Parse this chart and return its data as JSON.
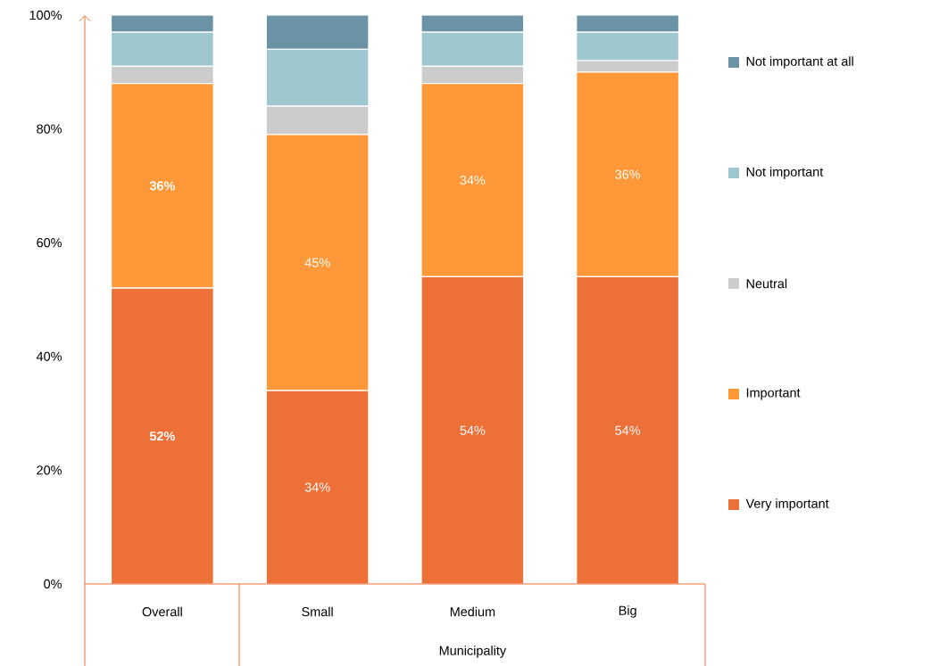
{
  "chart_data": {
    "type": "bar",
    "stacked": true,
    "xlabel": "Municipality",
    "categories": [
      "Overall",
      "Small",
      "Medium",
      "Big"
    ],
    "series": [
      {
        "name": "Very important",
        "color": "#ed7038",
        "values": [
          52,
          34,
          54,
          54
        ],
        "value_labels": [
          "**52%**",
          "34%",
          "54%",
          "54%"
        ]
      },
      {
        "name": "Important",
        "color": "#ff9838",
        "values": [
          36,
          45,
          34,
          36
        ],
        "value_labels": [
          "**36%**",
          "45%",
          "34%",
          "36%"
        ]
      },
      {
        "name": "Neutral",
        "color": "#cccccc",
        "values": [
          3,
          5,
          3,
          2
        ]
      },
      {
        "name": "Not important",
        "color": "#9fc7d0",
        "values": [
          6,
          10,
          6,
          5
        ]
      },
      {
        "name": "Not important at all",
        "color": "#6a93a6",
        "values": [
          3,
          6,
          3,
          3
        ]
      }
    ],
    "ylim": [
      0,
      100
    ],
    "yticks": [
      {
        "value": 0,
        "label": "0%"
      },
      {
        "value": 20,
        "label": "20%"
      },
      {
        "value": 40,
        "label": "40%"
      },
      {
        "value": 60,
        "label": "60%"
      },
      {
        "value": 80,
        "label": "80%"
      },
      {
        "value": 100,
        "label": "100%"
      }
    ],
    "legend": "right"
  }
}
